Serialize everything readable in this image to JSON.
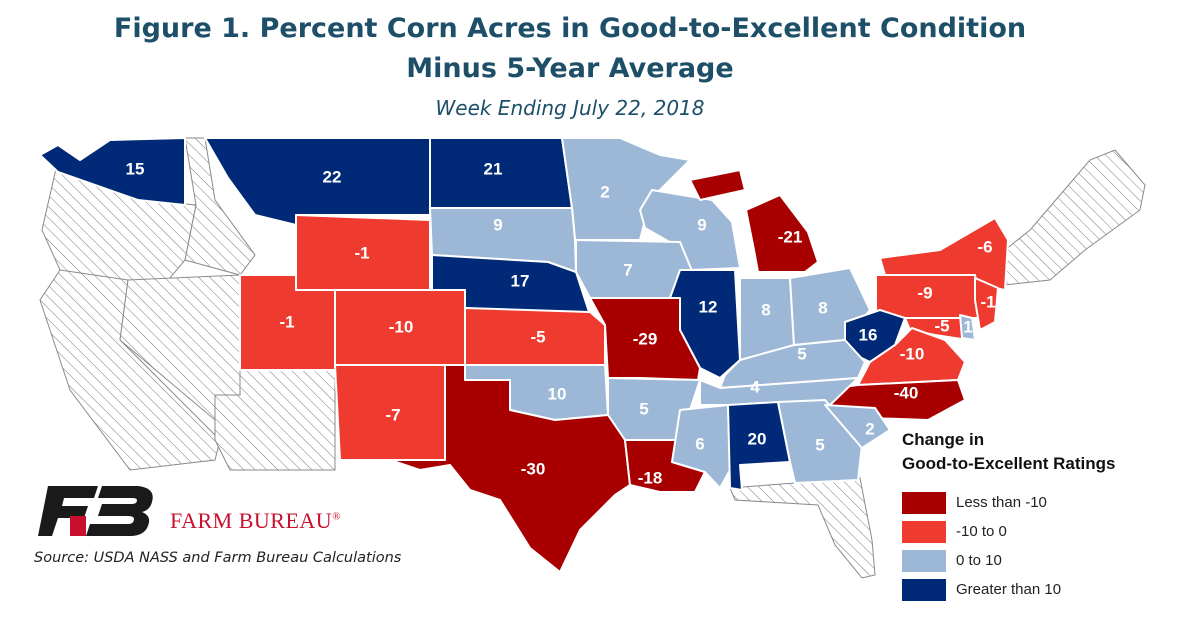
{
  "title_line1": "Figure 1. Percent Corn Acres in Good-to-Excellent Condition",
  "title_line2": "Minus 5-Year Average",
  "subtitle": "Week Ending July 22, 2018",
  "legend": {
    "title_line1": "Change in",
    "title_line2": "Good-to-Excellent Ratings",
    "items": [
      {
        "label": "Less than -10",
        "color": "#a80000"
      },
      {
        "label": "-10 to 0",
        "color": "#ee3a2f"
      },
      {
        "label": "0 to 10",
        "color": "#9cb8d6"
      },
      {
        "label": "Greater than 10",
        "color": "#002a78"
      }
    ]
  },
  "brand": "FARM BUREAU",
  "brand_mark": "®",
  "source": "Source: USDA NASS and Farm Bureau Calculations",
  "states": {
    "WA": "15",
    "MT": "22",
    "ND": "21",
    "MN": "2",
    "SD": "9",
    "WI": "9",
    "MI": "-21",
    "NY": "-6",
    "ID": "-1",
    "NE": "17",
    "IA": "7",
    "IL": "12",
    "IN": "8",
    "OH": "8",
    "PA": "-9",
    "NJ": "-1",
    "WV": "16",
    "MD": "-5",
    "DE": "1",
    "VA": "-10",
    "KY": "5",
    "UT": "-1",
    "CO": "-10",
    "KS": "-5",
    "MO": "-29",
    "NC": "-40",
    "TN": "4",
    "OK": "10",
    "AR": "5",
    "NM": "-7",
    "TX": "-30",
    "LA": "-18",
    "MS": "6",
    "AL": "20",
    "GA": "5",
    "SC": "2"
  }
}
